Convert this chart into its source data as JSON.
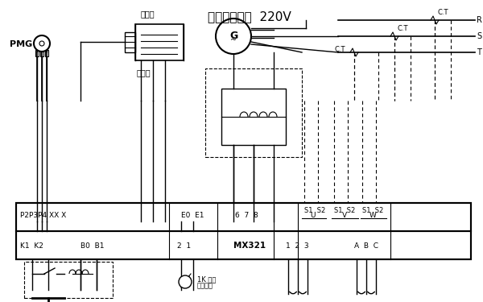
{
  "title_main": "主发电机绕组  220V",
  "label_pmg": "PMG",
  "label_exciter": "励磁机",
  "label_rectifier": "整流器",
  "label_CT1": "C.T",
  "label_CT2": "C.T",
  "label_CT3": "C.T",
  "label_R": "R",
  "label_S": "S",
  "label_T": "T",
  "label_G": "G",
  "terminal_top": "P2P3P4 XX X",
  "terminal_E": "E0  E1",
  "terminal_678": "6  7  8",
  "terminal_UVW": "S1  S2 S1  S2  S1  S2",
  "terminal_U": "U",
  "terminal_V": "V",
  "terminal_W": "W",
  "label_K1K2": "K1  K2",
  "label_B0B1": "B0  B1",
  "label_21": "2  1",
  "label_MX321": "MX321",
  "label_123": "1  2  3",
  "label_ABC": "A  B  C",
  "label_1K": "1K 负载",
  "label_adj": "外部调整",
  "bg_color": "#ffffff",
  "line_color": "#000000",
  "dashed_color": "#000000",
  "box_color": "#000000",
  "font_size": 7,
  "title_font_size": 11
}
